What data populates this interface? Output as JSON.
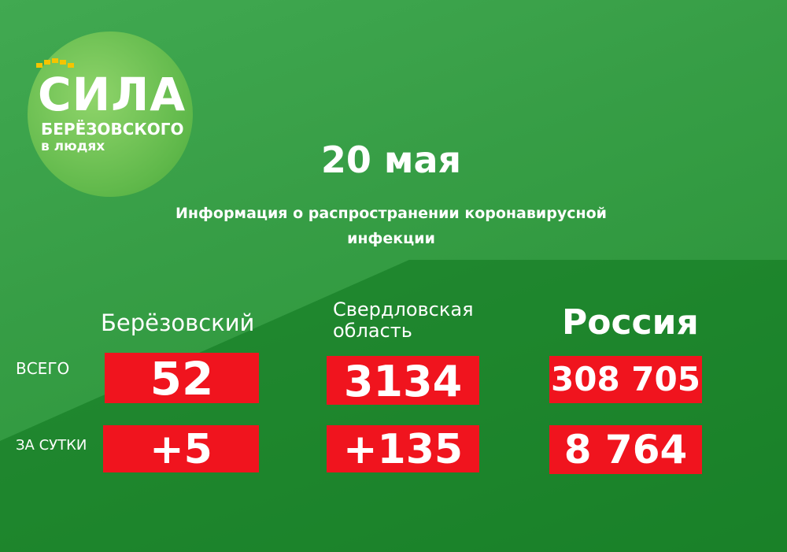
{
  "logo": {
    "title": "СИЛА",
    "subtitle": "БЕРЁЗОВСКОГО",
    "tagline": "в людях"
  },
  "header": {
    "date": "20 мая",
    "subtitle_lines": [
      "Информация о распространении коронавирусной",
      "инфекции"
    ]
  },
  "table": {
    "columns": [
      "Берёзовский",
      [
        "Свердловская",
        "область"
      ],
      "Россия"
    ],
    "rows": [
      {
        "label": "ВСЕГО",
        "values": [
          "52",
          "3134",
          "308 705"
        ]
      },
      {
        "label": "ЗА СУТКИ",
        "values": [
          "+5",
          "+135",
          "8 764"
        ]
      }
    ]
  }
}
